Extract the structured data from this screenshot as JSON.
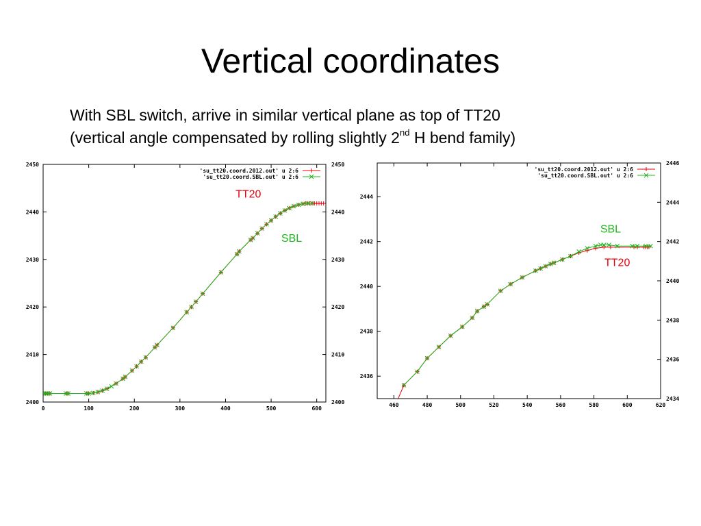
{
  "slide": {
    "title": "Vertical coordinates",
    "line1": "With SBL switch, arrive in similar vertical plane as top of TT20",
    "line2_pre": "(vertical angle  compensated by rolling slightly 2",
    "line2_sup": "nd",
    "line2_post": " H bend family)"
  },
  "colors": {
    "tt20": "#e8000b",
    "sbl": "#1db61d",
    "line": "#1db61d"
  },
  "chart_data": [
    {
      "type": "scatter",
      "xlim": [
        0,
        620
      ],
      "ylim": [
        2400,
        2450
      ],
      "y2lim": [
        2400,
        2450
      ],
      "xticks": [
        0,
        100,
        200,
        300,
        400,
        500,
        600
      ],
      "yticks": [
        2400,
        2410,
        2420,
        2430,
        2440,
        2450
      ],
      "y2ticks": [
        2400,
        2410,
        2420,
        2430,
        2440,
        2450
      ],
      "legend_position": "top-right",
      "series": [
        {
          "name": "'su_tt20.coord.2012.out' u 2:6",
          "marker": "plus",
          "color": "#e8000b",
          "x": [
            5,
            10,
            15,
            50,
            55,
            95,
            100,
            110,
            120,
            130,
            140,
            160,
            175,
            180,
            195,
            205,
            215,
            225,
            245,
            250,
            285,
            315,
            325,
            335,
            350,
            390,
            425,
            430,
            455,
            460,
            470,
            480,
            490,
            500,
            510,
            520,
            530,
            540,
            550,
            560,
            570,
            575,
            580,
            585,
            590,
            595,
            600,
            605,
            610,
            615
          ],
          "y": [
            2401.8,
            2401.8,
            2401.8,
            2401.8,
            2401.8,
            2401.8,
            2401.8,
            2401.9,
            2402.1,
            2402.4,
            2402.8,
            2403.9,
            2404.9,
            2405.3,
            2406.6,
            2407.5,
            2408.5,
            2409.4,
            2411.5,
            2412.0,
            2415.6,
            2418.9,
            2420.0,
            2421.1,
            2422.8,
            2427.3,
            2431.1,
            2431.7,
            2434.1,
            2434.5,
            2435.5,
            2436.5,
            2437.4,
            2438.2,
            2439.0,
            2439.7,
            2440.3,
            2440.8,
            2441.2,
            2441.5,
            2441.7,
            2441.8,
            2441.8,
            2441.8,
            2441.8,
            2441.8,
            2441.8,
            2441.8,
            2441.8,
            2441.8
          ]
        },
        {
          "name": "'su_tt20.coord.SBL.out' u 2:6",
          "marker": "cross",
          "color": "#1db61d",
          "x": [
            0,
            5,
            10,
            15,
            50,
            55,
            95,
            100,
            110,
            120,
            130,
            140,
            150,
            160,
            175,
            180,
            195,
            205,
            215,
            225,
            245,
            250,
            285,
            315,
            325,
            335,
            350,
            390,
            425,
            430,
            455,
            460,
            470,
            480,
            490,
            500,
            510,
            520,
            530,
            540,
            550,
            560,
            570,
            580,
            590
          ],
          "y": [
            2401.8,
            2401.8,
            2401.8,
            2401.8,
            2401.8,
            2401.8,
            2401.8,
            2401.8,
            2401.9,
            2402.1,
            2402.4,
            2402.8,
            2403.3,
            2403.9,
            2404.9,
            2405.3,
            2406.6,
            2407.5,
            2408.5,
            2409.4,
            2411.5,
            2412.0,
            2415.6,
            2418.9,
            2420.0,
            2421.1,
            2422.8,
            2427.3,
            2431.1,
            2431.7,
            2434.1,
            2434.5,
            2435.5,
            2436.5,
            2437.4,
            2438.2,
            2439.0,
            2439.7,
            2440.3,
            2440.8,
            2441.2,
            2441.5,
            2441.7,
            2441.8,
            2441.8
          ]
        }
      ],
      "annotations": [
        {
          "text": "TT20",
          "color": "#e8000b",
          "x": 450,
          "y": 2443
        },
        {
          "text": "SBL",
          "color": "#1db61d",
          "x": 545,
          "y": 2433.7
        }
      ]
    },
    {
      "type": "scatter",
      "xlim": [
        450,
        620
      ],
      "ylim": [
        2435,
        2445.5
      ],
      "y2lim": [
        2434,
        2446
      ],
      "xticks": [
        460,
        480,
        500,
        520,
        540,
        560,
        580,
        600,
        620
      ],
      "yticks": [
        2436,
        2438,
        2440,
        2442,
        2444
      ],
      "y2ticks": [
        2434,
        2436,
        2438,
        2440,
        2442,
        2444,
        2446
      ],
      "legend_position": "top-right",
      "series": [
        {
          "name": "'su_tt20.coord.2012.out' u 2:6",
          "marker": "plus",
          "color": "#e8000b",
          "x": [
            462,
            466,
            474,
            480,
            487,
            494,
            501,
            507,
            510,
            514,
            516,
            524,
            530,
            537,
            545,
            548,
            551,
            554,
            556,
            561,
            566,
            571,
            576,
            581,
            586,
            590,
            604,
            606,
            610,
            611,
            612,
            613
          ],
          "y": [
            2434.9,
            2435.6,
            2436.2,
            2436.8,
            2437.3,
            2437.8,
            2438.2,
            2438.6,
            2438.9,
            2439.1,
            2439.2,
            2439.8,
            2440.1,
            2440.4,
            2440.7,
            2440.8,
            2440.9,
            2441.0,
            2441.05,
            2441.2,
            2441.35,
            2441.5,
            2441.6,
            2441.7,
            2441.75,
            2441.75,
            2441.75,
            2441.75,
            2441.75,
            2441.75,
            2441.75,
            2441.75
          ]
        },
        {
          "name": "'su_tt20.coord.SBL.out' u 2:6",
          "marker": "cross",
          "color": "#1db61d",
          "x": [
            466,
            474,
            480,
            487,
            494,
            501,
            507,
            510,
            514,
            516,
            524,
            530,
            537,
            545,
            548,
            551,
            554,
            556,
            561,
            566,
            571,
            576,
            581,
            584,
            586,
            589,
            594,
            603,
            606,
            611,
            614
          ],
          "y": [
            2435.6,
            2436.2,
            2436.8,
            2437.3,
            2437.8,
            2438.2,
            2438.6,
            2438.9,
            2439.1,
            2439.2,
            2439.8,
            2440.1,
            2440.4,
            2440.7,
            2440.8,
            2440.9,
            2441.0,
            2441.05,
            2441.2,
            2441.35,
            2441.55,
            2441.7,
            2441.8,
            2441.85,
            2441.85,
            2441.85,
            2441.8,
            2441.8,
            2441.8,
            2441.8,
            2441.8
          ]
        }
      ],
      "annotations": [
        {
          "text": "SBL",
          "color": "#1db61d",
          "x": 590,
          "y": 2442.4
        },
        {
          "text": "TT20",
          "color": "#e8000b",
          "x": 594,
          "y": 2440.9
        }
      ]
    }
  ]
}
